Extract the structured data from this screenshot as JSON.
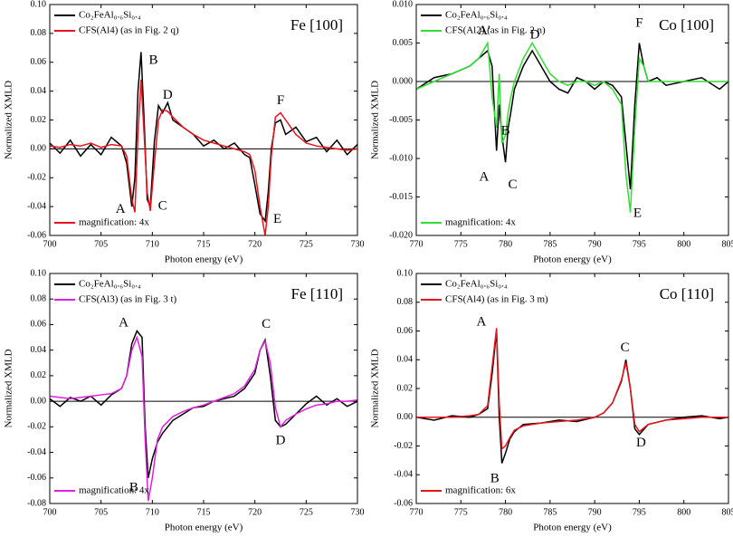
{
  "chart_data": [
    {
      "type": "line",
      "title": "Fe [100]",
      "xlabel": "Photon energy (eV)",
      "ylabel": "Normalized XMLD",
      "note": "magnification: 4x",
      "xlim": [
        700,
        730
      ],
      "xticks": [
        700,
        705,
        710,
        715,
        720,
        725,
        730
      ],
      "ylim": [
        -0.06,
        0.1
      ],
      "yticks": [
        -0.06,
        -0.04,
        -0.02,
        {
          "value": 0,
          "label": "0.00"
        },
        0.02,
        0.04,
        0.06,
        0.08,
        {
          "value": 0.1,
          "label": "0.10"
        }
      ],
      "x": [
        700,
        701,
        702,
        703,
        704,
        705,
        706,
        707,
        707.5,
        708,
        708.3,
        708.6,
        708.9,
        709.2,
        709.5,
        709.8,
        710.2,
        710.6,
        711,
        711.5,
        712,
        713,
        714,
        715,
        716,
        717,
        718,
        719,
        719.5,
        720,
        720.5,
        721,
        721.3,
        721.6,
        722,
        722.5,
        723,
        724,
        725,
        726,
        727,
        728,
        729,
        730
      ],
      "series": [
        {
          "name": "Co₂FeAl₀.₆Si₀.₄",
          "color": "#000000",
          "values": [
            0.004,
            -0.003,
            0.006,
            -0.005,
            0.003,
            -0.004,
            0.008,
            0.002,
            -0.01,
            -0.04,
            -0.02,
            0.04,
            0.067,
            0.02,
            -0.035,
            -0.04,
            0.005,
            0.03,
            0.025,
            0.032,
            0.02,
            0.015,
            0.01,
            0.002,
            0.006,
            0.0,
            0.004,
            -0.004,
            -0.006,
            -0.025,
            -0.045,
            -0.05,
            -0.03,
            0.0,
            0.018,
            0.02,
            0.01,
            0.015,
            0.005,
            0.008,
            -0.002,
            0.006,
            -0.004,
            0.003
          ]
        },
        {
          "name": "CFS(Al4) (as in Fig. 2 q)",
          "color": "#e8141b",
          "values": [
            0.002,
            0.001,
            0.003,
            0.002,
            0.004,
            0.001,
            0.003,
            0.002,
            -0.005,
            -0.035,
            -0.044,
            0.01,
            0.048,
            0.01,
            -0.03,
            -0.043,
            -0.01,
            0.02,
            0.027,
            0.026,
            0.022,
            0.015,
            0.01,
            0.006,
            0.004,
            0.002,
            0.0,
            -0.002,
            -0.004,
            -0.015,
            -0.04,
            -0.06,
            -0.04,
            -0.005,
            0.022,
            0.025,
            0.02,
            0.01,
            0.004,
            0.002,
            0.001,
            0.0,
            -0.001,
            0.0
          ]
        }
      ],
      "annotations": [
        {
          "text": "A",
          "x": 706.9,
          "y": -0.042
        },
        {
          "text": "B",
          "x": 710.1,
          "y": 0.061
        },
        {
          "text": "C",
          "x": 711,
          "y": -0.04
        },
        {
          "text": "D",
          "x": 711.5,
          "y": 0.037
        },
        {
          "text": "E",
          "x": 722.2,
          "y": -0.049
        },
        {
          "text": "F",
          "x": 722.5,
          "y": 0.033
        }
      ]
    },
    {
      "type": "line",
      "title": "Co [100]",
      "xlabel": "Photon energy (eV)",
      "ylabel": "Normalized XMLD",
      "note": "magnification: 4x",
      "xlim": [
        770,
        805
      ],
      "xticks": [
        770,
        775,
        780,
        785,
        790,
        795,
        800,
        805
      ],
      "ylim": [
        -0.02,
        0.01
      ],
      "yticks": [
        {
          "value": -0.02,
          "label": "-0.020"
        },
        -0.015,
        {
          "value": -0.01,
          "label": "-0.010"
        },
        -0.005,
        {
          "value": 0,
          "label": "0.000"
        },
        0.005,
        {
          "value": 0.01,
          "label": "0.010"
        }
      ],
      "x": [
        770,
        772,
        774,
        776,
        777,
        778,
        778.5,
        779,
        779.3,
        779.6,
        780,
        780.3,
        780.6,
        781,
        782,
        783,
        784,
        785,
        786,
        787,
        788,
        789,
        790,
        791,
        792,
        793,
        793.5,
        794,
        794.5,
        795,
        795.5,
        796,
        797,
        798,
        800,
        802,
        804,
        805
      ],
      "series": [
        {
          "name": "Co₂FeAl₀.₆Si₀.₄",
          "color": "#000000",
          "values": [
            -0.001,
            0.0005,
            0.001,
            0.002,
            0.003,
            0.004,
            0.002,
            -0.009,
            -0.003,
            -0.007,
            -0.0105,
            -0.006,
            -0.004,
            -0.001,
            0.002,
            0.004,
            0.002,
            0.0,
            -0.001,
            -0.0015,
            0.0005,
            0.0,
            -0.001,
            0.0,
            -0.0005,
            -0.002,
            -0.008,
            -0.014,
            -0.003,
            0.005,
            0.002,
            0.0,
            0.0005,
            -0.0005,
            0.0,
            0.0005,
            -0.001,
            0.0
          ]
        },
        {
          "name": "CFS(Al2) (as in Fig. 2 n)",
          "color": "#33dd33",
          "values": [
            -0.001,
            0.0,
            0.001,
            0.002,
            0.003,
            0.005,
            -0.002,
            -0.006,
            0.001,
            -0.008,
            -0.007,
            -0.004,
            -0.002,
            0.0,
            0.003,
            0.005,
            0.003,
            0.001,
            0.0,
            -0.0005,
            0.0,
            0.0,
            -0.0005,
            0.0,
            -0.001,
            -0.003,
            -0.012,
            -0.017,
            -0.006,
            0.003,
            0.002,
            0.0,
            0.0,
            0.0,
            0.0,
            0.0,
            0.0,
            0.0
          ]
        }
      ],
      "annotations": [
        {
          "text": "A'",
          "x": 777.6,
          "y": 0.0065
        },
        {
          "text": "A",
          "x": 777.6,
          "y": -0.0125
        },
        {
          "text": "B",
          "x": 780,
          "y": -0.0065
        },
        {
          "text": "C",
          "x": 780.8,
          "y": -0.0135
        },
        {
          "text": "D",
          "x": 783.3,
          "y": 0.006
        },
        {
          "text": "E",
          "x": 794.8,
          "y": -0.0172
        },
        {
          "text": "F",
          "x": 795,
          "y": 0.0075
        }
      ]
    },
    {
      "type": "line",
      "title": "Fe [110]",
      "xlabel": "Photon energy (eV)",
      "ylabel": "Normalized XMLD",
      "note": "magnification: 4x",
      "xlim": [
        700,
        730
      ],
      "xticks": [
        700,
        705,
        710,
        715,
        720,
        725,
        730
      ],
      "ylim": [
        -0.08,
        0.1
      ],
      "yticks": [
        -0.08,
        -0.06,
        -0.04,
        -0.02,
        {
          "value": 0,
          "label": "0.00"
        },
        0.02,
        0.04,
        0.06,
        0.08,
        {
          "value": 0.1,
          "label": "0.10"
        }
      ],
      "x": [
        700,
        701,
        702,
        703,
        704,
        705,
        706,
        707,
        707.5,
        708,
        708.5,
        709,
        709.3,
        709.6,
        710,
        710.5,
        711,
        712,
        713,
        714,
        715,
        716,
        717,
        718,
        719,
        720,
        720.5,
        721,
        721.5,
        722,
        722.5,
        723,
        724,
        725,
        726,
        727,
        728,
        729,
        730
      ],
      "series": [
        {
          "name": "Co₂FeAl₀.₆Si₀.₄",
          "color": "#000000",
          "values": [
            0.002,
            -0.004,
            0.003,
            0.0,
            0.004,
            -0.003,
            0.005,
            0.01,
            0.02,
            0.045,
            0.055,
            0.05,
            -0.02,
            -0.06,
            -0.045,
            -0.032,
            -0.025,
            -0.015,
            -0.01,
            -0.005,
            -0.004,
            0.0,
            0.002,
            0.004,
            0.01,
            0.022,
            0.04,
            0.048,
            0.02,
            -0.015,
            -0.02,
            -0.018,
            -0.01,
            -0.002,
            0.004,
            -0.003,
            0.002,
            -0.004,
            0.0
          ]
        },
        {
          "name": "CFS(Al3) (as in Fig. 3 t)",
          "color": "#e020e0",
          "values": [
            0.004,
            0.003,
            0.002,
            0.003,
            0.004,
            0.005,
            0.006,
            0.01,
            0.02,
            0.04,
            0.05,
            0.035,
            -0.03,
            -0.078,
            -0.06,
            -0.03,
            -0.02,
            -0.012,
            -0.008,
            -0.005,
            -0.003,
            0.0,
            0.003,
            0.006,
            0.012,
            0.025,
            0.04,
            0.047,
            0.03,
            -0.005,
            -0.02,
            -0.015,
            -0.01,
            -0.006,
            -0.003,
            -0.002,
            0.0,
            0.0,
            0.001
          ]
        }
      ],
      "annotations": [
        {
          "text": "A",
          "x": 707.2,
          "y": 0.061
        },
        {
          "text": "B",
          "x": 708.2,
          "y": -0.068
        },
        {
          "text": "C",
          "x": 721.1,
          "y": 0.06
        },
        {
          "text": "D",
          "x": 722.5,
          "y": -0.031
        }
      ]
    },
    {
      "type": "line",
      "title": "Co [110]",
      "xlabel": "Photon energy (eV)",
      "ylabel": "Normalized XMLD",
      "note": "magnification: 6x",
      "xlim": [
        770,
        805
      ],
      "xticks": [
        770,
        775,
        780,
        785,
        790,
        795,
        800,
        805
      ],
      "ylim": [
        -0.06,
        0.1
      ],
      "yticks": [
        -0.06,
        -0.04,
        -0.02,
        {
          "value": 0,
          "label": "0.00"
        },
        0.02,
        0.04,
        0.06,
        0.08,
        {
          "value": 0.1,
          "label": "0.10"
        }
      ],
      "x": [
        770,
        772,
        774,
        776,
        777,
        778,
        778.5,
        779,
        779.3,
        779.6,
        780,
        780.5,
        781,
        782,
        784,
        786,
        788,
        790,
        791,
        792,
        793,
        793.5,
        794,
        794.5,
        795,
        796,
        798,
        800,
        802,
        804,
        805
      ],
      "series": [
        {
          "name": "Co₂FeAl₀.₆Si₀.₄",
          "color": "#000000",
          "values": [
            0.0,
            -0.002,
            0.001,
            0.0,
            0.002,
            0.006,
            0.03,
            0.06,
            0.0,
            -0.032,
            -0.025,
            -0.015,
            -0.01,
            -0.005,
            -0.004,
            -0.002,
            -0.003,
            0.0,
            0.003,
            0.01,
            0.025,
            0.04,
            0.02,
            -0.008,
            -0.012,
            -0.005,
            -0.002,
            0.0,
            0.001,
            -0.001,
            0.0
          ]
        },
        {
          "name": "CFS(Al4) (as in Fig. 3 m)",
          "color": "#e8141b",
          "values": [
            0.0,
            0.0,
            0.0,
            0.001,
            0.002,
            0.008,
            0.035,
            0.062,
            0.01,
            -0.022,
            -0.02,
            -0.014,
            -0.009,
            -0.006,
            -0.004,
            -0.003,
            -0.002,
            0.0,
            0.003,
            0.01,
            0.026,
            0.038,
            0.02,
            -0.005,
            -0.01,
            -0.005,
            -0.002,
            -0.001,
            0.0,
            0.0,
            0.0
          ]
        }
      ],
      "annotations": [
        {
          "text": "A",
          "x": 777.3,
          "y": 0.066
        },
        {
          "text": "B",
          "x": 778.8,
          "y": -0.043
        },
        {
          "text": "C",
          "x": 793.4,
          "y": 0.048
        },
        {
          "text": "D",
          "x": 795.2,
          "y": -0.018
        }
      ]
    }
  ]
}
